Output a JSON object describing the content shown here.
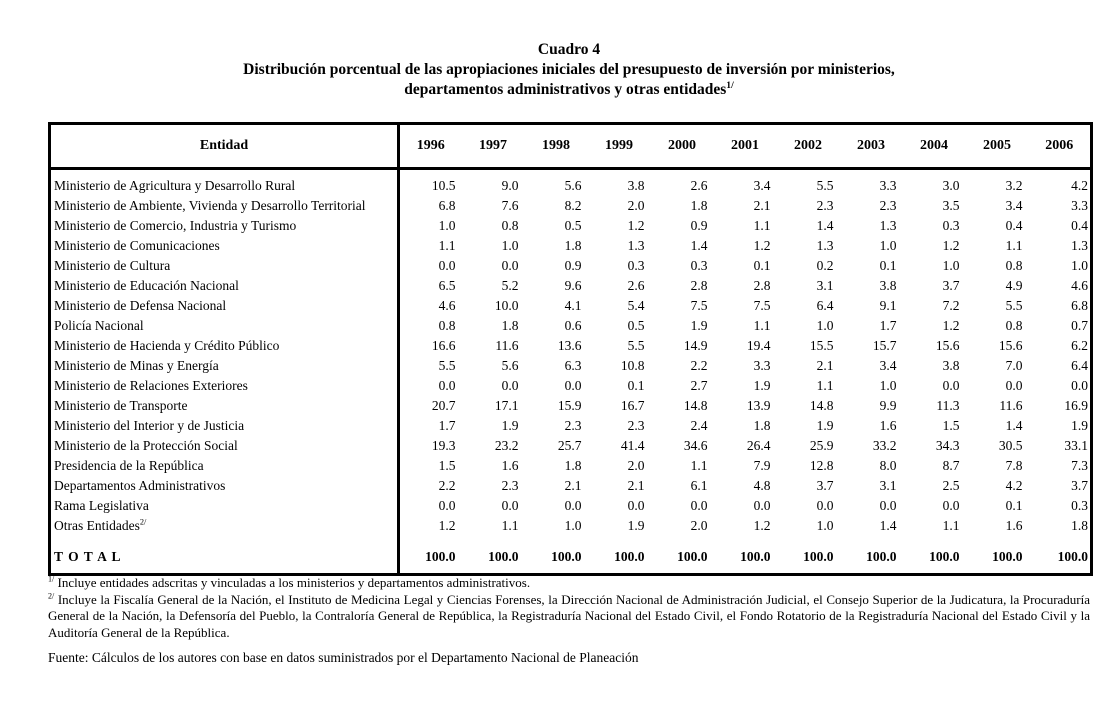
{
  "title": {
    "line1": "Cuadro 4",
    "line2": "Distribución porcentual de las apropiaciones iniciales del presupuesto de inversión por ministerios,",
    "line3": "departamentos administrativos y otras entidades",
    "line3_sup": "1/"
  },
  "table": {
    "entity_header": "Entidad",
    "years": [
      "1996",
      "1997",
      "1998",
      "1999",
      "2000",
      "2001",
      "2002",
      "2003",
      "2004",
      "2005",
      "2006"
    ],
    "rows": [
      {
        "label": "Ministerio de Agricultura y Desarrollo Rural",
        "values": [
          "10.5",
          "9.0",
          "5.6",
          "3.8",
          "2.6",
          "3.4",
          "5.5",
          "3.3",
          "3.0",
          "3.2",
          "4.2"
        ]
      },
      {
        "label": "Ministerio de Ambiente, Vivienda y Desarrollo Territorial",
        "values": [
          "6.8",
          "7.6",
          "8.2",
          "2.0",
          "1.8",
          "2.1",
          "2.3",
          "2.3",
          "3.5",
          "3.4",
          "3.3"
        ]
      },
      {
        "label": "Ministerio de Comercio, Industria y Turismo",
        "values": [
          "1.0",
          "0.8",
          "0.5",
          "1.2",
          "0.9",
          "1.1",
          "1.4",
          "1.3",
          "0.3",
          "0.4",
          "0.4"
        ]
      },
      {
        "label": "Ministerio de Comunicaciones",
        "values": [
          "1.1",
          "1.0",
          "1.8",
          "1.3",
          "1.4",
          "1.2",
          "1.3",
          "1.0",
          "1.2",
          "1.1",
          "1.3"
        ]
      },
      {
        "label": "Ministerio de Cultura",
        "values": [
          "0.0",
          "0.0",
          "0.9",
          "0.3",
          "0.3",
          "0.1",
          "0.2",
          "0.1",
          "1.0",
          "0.8",
          "1.0"
        ]
      },
      {
        "label": "Ministerio de Educación Nacional",
        "values": [
          "6.5",
          "5.2",
          "9.6",
          "2.6",
          "2.8",
          "2.8",
          "3.1",
          "3.8",
          "3.7",
          "4.9",
          "4.6"
        ]
      },
      {
        "label": "Ministerio de Defensa Nacional",
        "values": [
          "4.6",
          "10.0",
          "4.1",
          "5.4",
          "7.5",
          "7.5",
          "6.4",
          "9.1",
          "7.2",
          "5.5",
          "6.8"
        ]
      },
      {
        "label": "Policía Nacional",
        "values": [
          "0.8",
          "1.8",
          "0.6",
          "0.5",
          "1.9",
          "1.1",
          "1.0",
          "1.7",
          "1.2",
          "0.8",
          "0.7"
        ]
      },
      {
        "label": "Ministerio de Hacienda y Crédito Público",
        "values": [
          "16.6",
          "11.6",
          "13.6",
          "5.5",
          "14.9",
          "19.4",
          "15.5",
          "15.7",
          "15.6",
          "15.6",
          "6.2"
        ]
      },
      {
        "label": "Ministerio de Minas y Energía",
        "values": [
          "5.5",
          "5.6",
          "6.3",
          "10.8",
          "2.2",
          "3.3",
          "2.1",
          "3.4",
          "3.8",
          "7.0",
          "6.4"
        ]
      },
      {
        "label": "Ministerio de Relaciones Exteriores",
        "values": [
          "0.0",
          "0.0",
          "0.0",
          "0.1",
          "2.7",
          "1.9",
          "1.1",
          "1.0",
          "0.0",
          "0.0",
          "0.0"
        ]
      },
      {
        "label": "Ministerio de Transporte",
        "values": [
          "20.7",
          "17.1",
          "15.9",
          "16.7",
          "14.8",
          "13.9",
          "14.8",
          "9.9",
          "11.3",
          "11.6",
          "16.9"
        ]
      },
      {
        "label": "Ministerio del Interior y de Justicia",
        "values": [
          "1.7",
          "1.9",
          "2.3",
          "2.3",
          "2.4",
          "1.8",
          "1.9",
          "1.6",
          "1.5",
          "1.4",
          "1.9"
        ]
      },
      {
        "label": "Ministerio de la Protección Social",
        "values": [
          "19.3",
          "23.2",
          "25.7",
          "41.4",
          "34.6",
          "26.4",
          "25.9",
          "33.2",
          "34.3",
          "30.5",
          "33.1"
        ]
      },
      {
        "label": "Presidencia de la República",
        "values": [
          "1.5",
          "1.6",
          "1.8",
          "2.0",
          "1.1",
          "7.9",
          "12.8",
          "8.0",
          "8.7",
          "7.8",
          "7.3"
        ]
      },
      {
        "label": "Departamentos Administrativos",
        "values": [
          "2.2",
          "2.3",
          "2.1",
          "2.1",
          "6.1",
          "4.8",
          "3.7",
          "3.1",
          "2.5",
          "4.2",
          "3.7"
        ]
      },
      {
        "label": "Rama Legislativa",
        "values": [
          "0.0",
          "0.0",
          "0.0",
          "0.0",
          "0.0",
          "0.0",
          "0.0",
          "0.0",
          "0.0",
          "0.1",
          "0.3"
        ]
      },
      {
        "label": "Otras Entidades",
        "sup": "2/",
        "values": [
          "1.2",
          "1.1",
          "1.0",
          "1.9",
          "2.0",
          "1.2",
          "1.0",
          "1.4",
          "1.1",
          "1.6",
          "1.8"
        ]
      }
    ],
    "total": {
      "label": "T O T A L",
      "values": [
        "100.0",
        "100.0",
        "100.0",
        "100.0",
        "100.0",
        "100.0",
        "100.0",
        "100.0",
        "100.0",
        "100.0",
        "100.0"
      ]
    }
  },
  "footnotes": [
    {
      "marker": "1/",
      "text": "Incluye entidades adscritas y vinculadas a los ministerios y departamentos administrativos."
    },
    {
      "marker": "2/",
      "text": "Incluye la Fiscalía General de la Nación, el Instituto de Medicina Legal y Ciencias Forenses, la Dirección Nacional de Administración Judicial, el Consejo Superior de la Judicatura, la Procuraduría General de la Nación, la Defensoría del Pueblo, la Contraloría General de República, la Registraduría Nacional del Estado Civil, el Fondo Rotatorio de la Registraduría Nacional del Estado Civil y la Auditoría General de la República."
    }
  ],
  "source": "Fuente: Cálculos de los autores con base en datos suministrados por el Departamento Nacional de Planeación"
}
